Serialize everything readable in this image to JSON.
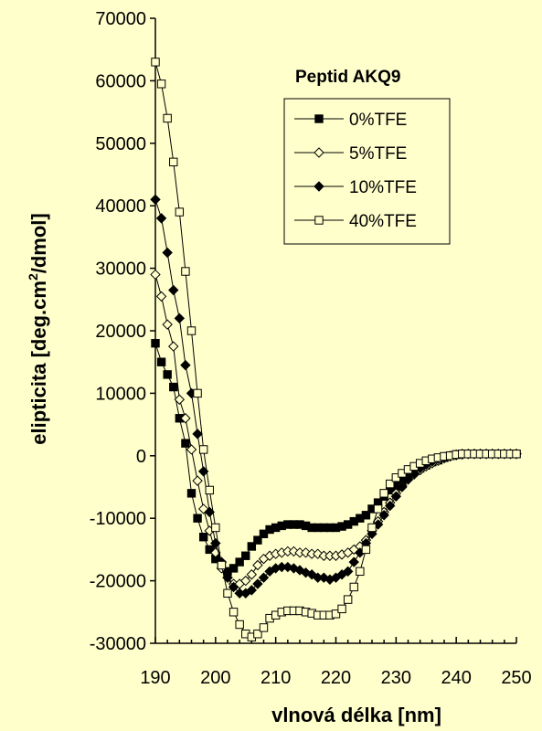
{
  "chart_data": {
    "type": "line",
    "xlabel": "vlnová délka [nm]",
    "ylabel_main": "elipticita [deg.cm",
    "ylabel_sup": "2",
    "ylabel_end": "/dmol]",
    "xlim": [
      190,
      250
    ],
    "ylim": [
      -30000,
      70000
    ],
    "x_ticks": [
      190,
      200,
      210,
      220,
      230,
      240,
      250
    ],
    "y_ticks": [
      -30000,
      -20000,
      -10000,
      0,
      10000,
      20000,
      30000,
      40000,
      50000,
      60000,
      70000
    ],
    "legend": {
      "title": "Peptid  AKQ9",
      "placement": "top-right",
      "entries": [
        "0%TFE",
        "5%TFE",
        "10%TFE",
        "40%TFE"
      ]
    },
    "series": [
      {
        "name": "0%TFE",
        "marker": "square-filled",
        "x": [
          190,
          191,
          192,
          193,
          194,
          195,
          196,
          197,
          198,
          199,
          200,
          201,
          202,
          203,
          204,
          205,
          206,
          207,
          208,
          209,
          210,
          211,
          212,
          213,
          214,
          215,
          216,
          217,
          218,
          219,
          220,
          221,
          222,
          223,
          224,
          225,
          226,
          227,
          228,
          229,
          230,
          231,
          232,
          233,
          234,
          235,
          236,
          237,
          238,
          239,
          240,
          241,
          242,
          243,
          244,
          245,
          246,
          247,
          248,
          249,
          250
        ],
        "y": [
          18000,
          15000,
          13000,
          11000,
          6000,
          2000,
          -6000,
          -10000,
          -13000,
          -15000,
          -16500,
          -17500,
          -18500,
          -18000,
          -17000,
          -16000,
          -14500,
          -13500,
          -12500,
          -11800,
          -11500,
          -11200,
          -11000,
          -11000,
          -11000,
          -11200,
          -11500,
          -11500,
          -11500,
          -11500,
          -11500,
          -11300,
          -11000,
          -10500,
          -10000,
          -9500,
          -8500,
          -7500,
          -6500,
          -5500,
          -4800,
          -4000,
          -3300,
          -2500,
          -2000,
          -1500,
          -1000,
          -700,
          -300,
          0,
          200,
          300,
          300,
          300,
          300,
          300,
          300,
          300,
          300,
          300,
          300
        ]
      },
      {
        "name": "5%TFE",
        "marker": "diamond-open",
        "x": [
          190,
          191,
          192,
          193,
          194,
          195,
          196,
          197,
          198,
          199,
          200,
          201,
          202,
          203,
          204,
          205,
          206,
          207,
          208,
          209,
          210,
          211,
          212,
          213,
          214,
          215,
          216,
          217,
          218,
          219,
          220,
          221,
          222,
          223,
          224,
          225,
          226,
          227,
          228,
          229,
          230,
          231,
          232,
          233,
          234,
          235,
          236,
          237,
          238,
          239,
          240,
          241,
          242,
          243,
          244,
          245,
          246,
          247,
          248,
          249,
          250
        ],
        "y": [
          29000,
          25500,
          21000,
          17500,
          9000,
          6000,
          1000,
          -4000,
          -8500,
          -12000,
          -15500,
          -18000,
          -19500,
          -20500,
          -20500,
          -20000,
          -19000,
          -17500,
          -16500,
          -16000,
          -15700,
          -15500,
          -15300,
          -15300,
          -15500,
          -15500,
          -15700,
          -15700,
          -16000,
          -16000,
          -16000,
          -15800,
          -15500,
          -15000,
          -14500,
          -13500,
          -12000,
          -10500,
          -9000,
          -7500,
          -6000,
          -4800,
          -3800,
          -3000,
          -2300,
          -1700,
          -1200,
          -800,
          -400,
          -100,
          100,
          200,
          300,
          300,
          300,
          300,
          300,
          300,
          300,
          300,
          300
        ]
      },
      {
        "name": "10%TFE",
        "marker": "diamond-filled",
        "x": [
          190,
          191,
          192,
          193,
          194,
          195,
          196,
          197,
          198,
          199,
          200,
          201,
          202,
          203,
          204,
          205,
          206,
          207,
          208,
          209,
          210,
          211,
          212,
          213,
          214,
          215,
          216,
          217,
          218,
          219,
          220,
          221,
          222,
          223,
          224,
          225,
          226,
          227,
          228,
          229,
          230,
          231,
          232,
          233,
          234,
          235,
          236,
          237,
          238,
          239,
          240,
          241,
          242,
          243,
          244,
          245,
          246,
          247,
          248,
          249,
          250
        ],
        "y": [
          41000,
          38000,
          32500,
          26500,
          22000,
          14500,
          10000,
          3500,
          -2500,
          -9000,
          -14000,
          -17000,
          -19500,
          -21000,
          -22000,
          -22000,
          -21500,
          -20500,
          -19500,
          -18500,
          -18000,
          -17800,
          -17800,
          -18000,
          -18300,
          -18700,
          -19000,
          -19500,
          -19500,
          -19800,
          -19500,
          -19000,
          -18500,
          -17000,
          -15500,
          -14000,
          -12500,
          -11000,
          -9500,
          -8000,
          -6500,
          -5000,
          -3800,
          -2800,
          -2000,
          -1400,
          -900,
          -500,
          -200,
          0,
          200,
          300,
          300,
          300,
          300,
          300,
          300,
          300,
          300,
          300,
          300
        ]
      },
      {
        "name": "40%TFE",
        "marker": "square-open",
        "x": [
          190,
          191,
          192,
          193,
          194,
          195,
          196,
          197,
          198,
          199,
          200,
          201,
          202,
          203,
          204,
          205,
          206,
          207,
          208,
          209,
          210,
          211,
          212,
          213,
          214,
          215,
          216,
          217,
          218,
          219,
          220,
          221,
          222,
          223,
          224,
          225,
          226,
          227,
          228,
          229,
          230,
          231,
          232,
          233,
          234,
          235,
          236,
          237,
          238,
          239,
          240,
          241,
          242,
          243,
          244,
          245,
          246,
          247,
          248,
          249,
          250
        ],
        "y": [
          63000,
          59500,
          54000,
          47000,
          39000,
          29500,
          20000,
          10000,
          1000,
          -5500,
          -11500,
          -17500,
          -22000,
          -25000,
          -27000,
          -28500,
          -29000,
          -28500,
          -27500,
          -26000,
          -25500,
          -25000,
          -24800,
          -24800,
          -24800,
          -25000,
          -25200,
          -25500,
          -25500,
          -25500,
          -25300,
          -24500,
          -23000,
          -21000,
          -18500,
          -15000,
          -11500,
          -8500,
          -6000,
          -4500,
          -3500,
          -2800,
          -2200,
          -1700,
          -1200,
          -800,
          -500,
          -300,
          -100,
          0,
          200,
          300,
          300,
          300,
          300,
          300,
          300,
          300,
          300,
          300,
          300
        ]
      }
    ]
  }
}
